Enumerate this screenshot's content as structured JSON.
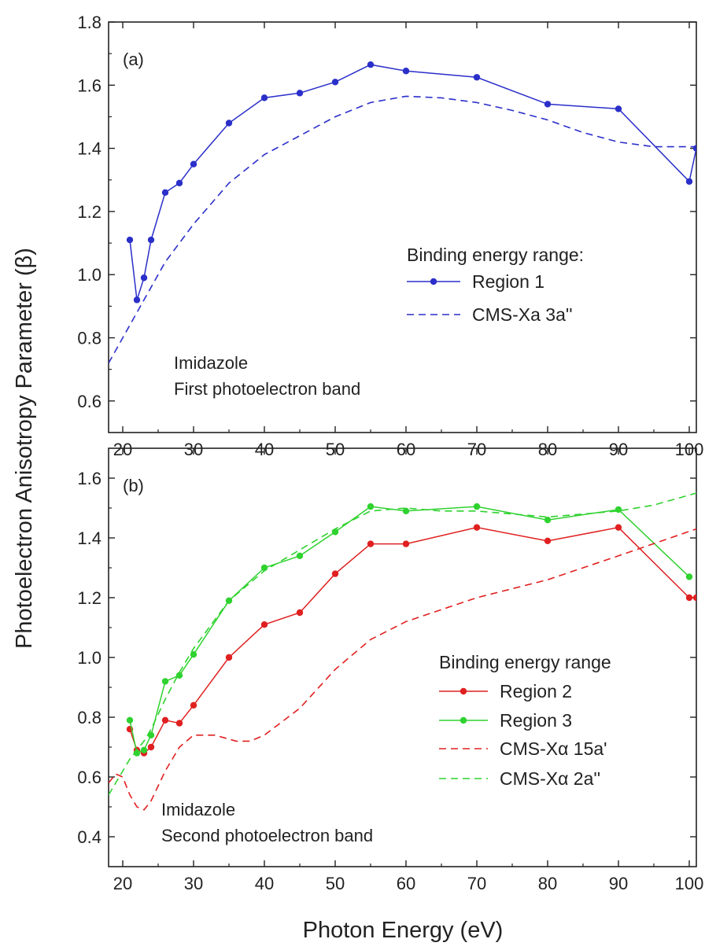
{
  "chart_data": [
    {
      "type": "line",
      "panel_label": "(a)",
      "xlabel": "Photon Energy (eV)",
      "ylabel": "Photoelectron Anisotropy Parameter (β)",
      "xlim": [
        18,
        101
      ],
      "ylim": [
        0.5,
        1.8
      ],
      "xticks": [
        20,
        30,
        40,
        50,
        60,
        70,
        80,
        90,
        100
      ],
      "yticks": [
        0.6,
        0.8,
        1.0,
        1.2,
        1.4,
        1.6,
        1.8
      ],
      "ytick_labels": [
        "0.6",
        "0.8",
        "1.0",
        "1.2",
        "1.4",
        "1.6",
        "1.8"
      ],
      "grid": false,
      "legend_title": "Binding energy range:",
      "annotation": [
        "Imidazole",
        "First photoelectron band"
      ],
      "series": [
        {
          "name": "Region 1",
          "style": "solid-markers",
          "color": "#2b2fc9",
          "x": [
            21,
            22,
            23,
            24,
            26,
            28,
            30,
            35,
            40,
            45,
            50,
            55,
            60,
            70,
            80,
            90,
            100,
            101
          ],
          "y": [
            1.11,
            0.92,
            0.99,
            1.11,
            1.26,
            1.29,
            1.35,
            1.48,
            1.56,
            1.575,
            1.61,
            1.665,
            1.645,
            1.625,
            1.54,
            1.525,
            1.295,
            1.4
          ]
        },
        {
          "name": "CMS-Xa 3a''",
          "style": "dashed",
          "color": "#2b2fc9",
          "x": [
            18,
            20,
            22,
            24,
            26,
            28,
            30,
            35,
            40,
            45,
            50,
            55,
            60,
            65,
            70,
            75,
            80,
            85,
            90,
            95,
            101
          ],
          "y": [
            0.72,
            0.8,
            0.88,
            0.96,
            1.04,
            1.1,
            1.16,
            1.29,
            1.38,
            1.44,
            1.5,
            1.545,
            1.565,
            1.56,
            1.545,
            1.52,
            1.49,
            1.45,
            1.42,
            1.405,
            1.405
          ]
        }
      ]
    },
    {
      "type": "line",
      "panel_label": "(b)",
      "xlabel": "Photon Energy (eV)",
      "ylabel": "Photoelectron Anisotropy Parameter (β)",
      "xlim": [
        18,
        101
      ],
      "ylim": [
        0.3,
        1.7
      ],
      "xticks": [
        20,
        30,
        40,
        50,
        60,
        70,
        80,
        90,
        100
      ],
      "yticks": [
        0.4,
        0.6,
        0.8,
        1.0,
        1.2,
        1.4,
        1.6
      ],
      "ytick_labels": [
        "0.4",
        "0.6",
        "0.8",
        "1.0",
        "1.2",
        "1.4",
        "1.6"
      ],
      "grid": false,
      "legend_title": "Binding energy range",
      "annotation": [
        "Imidazole",
        "Second photoelectron band"
      ],
      "series": [
        {
          "name": "Region 2",
          "style": "solid-markers",
          "color": "#e02020",
          "x": [
            21,
            22,
            23,
            24,
            26,
            28,
            30,
            35,
            40,
            45,
            50,
            55,
            60,
            70,
            80,
            90,
            100,
            101
          ],
          "y": [
            0.76,
            0.69,
            0.68,
            0.7,
            0.79,
            0.78,
            0.84,
            1.0,
            1.11,
            1.15,
            1.28,
            1.38,
            1.38,
            1.435,
            1.39,
            1.435,
            1.2,
            1.2
          ]
        },
        {
          "name": "Region 3",
          "style": "solid-markers",
          "color": "#2fd22f",
          "x": [
            21,
            22,
            23,
            24,
            26,
            28,
            30,
            35,
            40,
            45,
            50,
            55,
            60,
            70,
            80,
            90,
            100
          ],
          "y": [
            0.79,
            0.68,
            0.69,
            0.74,
            0.92,
            0.94,
            1.01,
            1.19,
            1.3,
            1.34,
            1.42,
            1.505,
            1.49,
            1.505,
            1.46,
            1.495,
            1.27
          ]
        },
        {
          "name": "CMS-Xα 15a'",
          "style": "dashed",
          "color": "#e02020",
          "x": [
            18,
            19,
            20,
            21,
            22,
            23,
            24,
            26,
            28,
            30,
            33,
            36,
            38,
            40,
            45,
            50,
            55,
            60,
            70,
            80,
            90,
            101
          ],
          "y": [
            0.58,
            0.61,
            0.6,
            0.54,
            0.5,
            0.49,
            0.52,
            0.62,
            0.7,
            0.74,
            0.74,
            0.72,
            0.72,
            0.74,
            0.83,
            0.96,
            1.06,
            1.12,
            1.2,
            1.26,
            1.34,
            1.43
          ]
        },
        {
          "name": "CMS-Xα 2a''",
          "style": "dashed",
          "color": "#2fd22f",
          "x": [
            18,
            20,
            21,
            22,
            23,
            24,
            26,
            28,
            30,
            35,
            40,
            45,
            50,
            55,
            60,
            65,
            70,
            75,
            80,
            85,
            90,
            95,
            101
          ],
          "y": [
            0.54,
            0.62,
            0.66,
            0.69,
            0.72,
            0.76,
            0.86,
            0.95,
            1.03,
            1.19,
            1.29,
            1.36,
            1.43,
            1.49,
            1.5,
            1.49,
            1.49,
            1.48,
            1.47,
            1.48,
            1.49,
            1.51,
            1.55
          ]
        }
      ]
    }
  ]
}
